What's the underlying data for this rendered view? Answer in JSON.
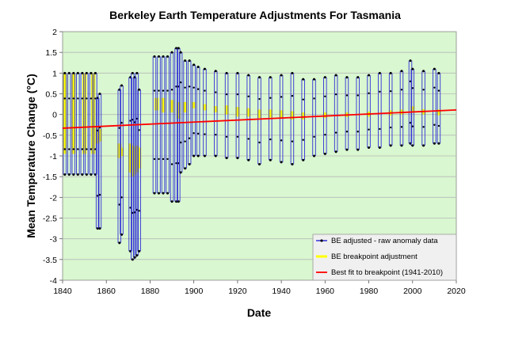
{
  "chart_data": {
    "type": "line",
    "title": "Berkeley Earth Temperature Adjustments For Tasmania",
    "xlabel": "Date",
    "ylabel": "Mean  Temperature  Change  (°C)",
    "xlim": [
      1840,
      2020
    ],
    "ylim": [
      -4,
      2
    ],
    "x_ticks": [
      "1840",
      "1860",
      "1880",
      "1900",
      "1920",
      "1940",
      "1960",
      "1980",
      "2000",
      "2020"
    ],
    "y_ticks": [
      "2",
      "1.5",
      "1",
      "0.5",
      "0",
      "-0.5",
      "-1",
      "-1.5",
      "-2",
      "-2.5",
      "-3",
      "-3.5",
      "-4"
    ],
    "grid": "horizontal",
    "legend_position": "bottom-right",
    "plot_background": "#d9f7d0",
    "series": [
      {
        "name": "BE adjusted - raw anomaly data",
        "color": "#2f2fd6",
        "style": "vertical range per month, dot markers at monthly values",
        "x": [
          1841,
          1843,
          1845,
          1847,
          1849,
          1851,
          1853,
          1855,
          1856,
          1857,
          1866,
          1867,
          1871,
          1872,
          1873,
          1874,
          1875,
          1882,
          1884,
          1886,
          1888,
          1890,
          1892,
          1893,
          1894,
          1896,
          1898,
          1900,
          1902,
          1905,
          1910,
          1915,
          1920,
          1925,
          1930,
          1935,
          1940,
          1945,
          1950,
          1955,
          1960,
          1965,
          1970,
          1975,
          1980,
          1985,
          1990,
          1995,
          1999,
          2000,
          2005,
          2010,
          2012
        ],
        "high": [
          1.0,
          1.0,
          1.0,
          1.0,
          1.0,
          1.0,
          1.0,
          1.0,
          0.4,
          0.5,
          0.6,
          0.7,
          0.9,
          1.0,
          0.9,
          1.0,
          0.6,
          1.4,
          1.4,
          1.4,
          1.4,
          1.5,
          1.6,
          1.6,
          1.5,
          1.3,
          1.3,
          1.2,
          1.15,
          1.1,
          1.05,
          1.0,
          1.0,
          0.95,
          0.9,
          0.9,
          0.95,
          1.0,
          0.85,
          0.85,
          0.9,
          0.95,
          0.9,
          0.9,
          0.95,
          1.0,
          1.0,
          1.05,
          1.3,
          1.1,
          1.05,
          1.1,
          1.0
        ],
        "low": [
          -1.45,
          -1.45,
          -1.45,
          -1.45,
          -1.45,
          -1.45,
          -1.45,
          -1.45,
          -2.75,
          -2.75,
          -3.1,
          -2.9,
          -3.3,
          -3.5,
          -3.45,
          -3.4,
          -3.3,
          -1.9,
          -1.9,
          -1.9,
          -1.9,
          -2.1,
          -2.1,
          -2.1,
          -1.4,
          -1.3,
          -1.2,
          -1.0,
          -1.0,
          -1.0,
          -1.0,
          -1.05,
          -1.05,
          -1.1,
          -1.2,
          -1.1,
          -1.15,
          -1.2,
          -1.1,
          -1.0,
          -0.95,
          -0.9,
          -0.85,
          -0.85,
          -0.8,
          -0.8,
          -0.75,
          -0.75,
          -0.7,
          -0.75,
          -0.75,
          -0.7,
          -0.7
        ]
      },
      {
        "name": "BE breakpoint adjustment",
        "color": "#ffff00",
        "style": "thick band",
        "x": [
          1841,
          1845,
          1850,
          1854,
          1856,
          1857,
          1866,
          1867,
          1871,
          1872,
          1873,
          1874,
          1875,
          1883,
          1886,
          1890,
          1893,
          1896,
          1900,
          1905,
          1910,
          1915,
          1920,
          1925,
          1930,
          1935,
          1940,
          1945,
          1950,
          1960,
          1970,
          1980,
          1990,
          1995,
          2000,
          2005,
          2012
        ],
        "high": [
          1.0,
          1.0,
          1.0,
          1.0,
          -0.3,
          -0.35,
          -0.7,
          -0.8,
          -0.7,
          -0.75,
          -0.8,
          -0.75,
          -0.8,
          0.4,
          0.4,
          0.35,
          0.3,
          0.3,
          0.3,
          0.25,
          0.2,
          0.22,
          0.18,
          0.15,
          0.12,
          0.12,
          0.1,
          0.08,
          0.05,
          0.05,
          0.05,
          0.07,
          0.1,
          0.12,
          0.2,
          0.13,
          0.12
        ],
        "low": [
          -0.95,
          -0.95,
          -0.95,
          -0.95,
          -0.7,
          -0.65,
          -1.05,
          -1.0,
          -1.4,
          -1.5,
          -1.45,
          -1.4,
          -1.3,
          0.1,
          0.05,
          0.05,
          -0.1,
          0.05,
          0.15,
          0.1,
          0.05,
          0.0,
          -0.05,
          -0.05,
          -0.08,
          -0.07,
          -0.1,
          -0.12,
          -0.12,
          -0.08,
          -0.06,
          -0.05,
          -0.02,
          0.0,
          0.05,
          0.0,
          -0.02
        ]
      },
      {
        "name": "Best fit to breakpoint (1941-2010)",
        "color": "#ff0000",
        "style": "line",
        "x": [
          1840,
          2020
        ],
        "y": [
          -0.33,
          0.11
        ]
      }
    ]
  }
}
